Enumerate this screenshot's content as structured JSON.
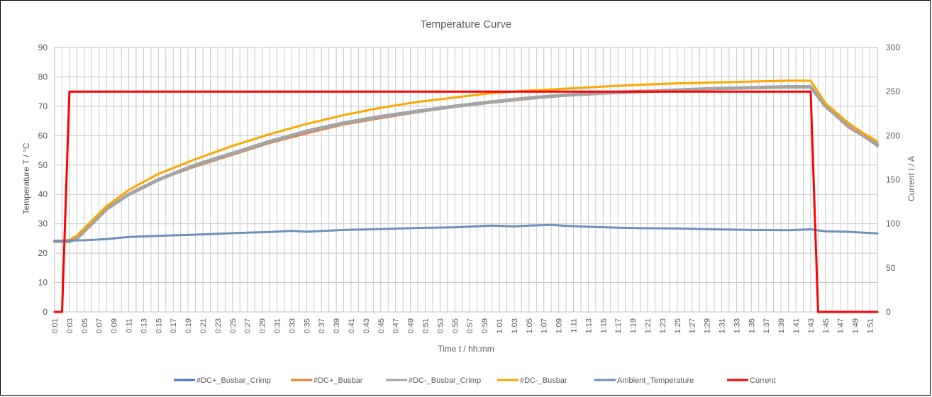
{
  "chart_data": {
    "type": "line",
    "title": "Temperature Curve",
    "xlabel": "Time t / hh:mm",
    "ylabel": "Temperature T / °C",
    "y2label": "Current I / A",
    "ylim": [
      0,
      90
    ],
    "y2lim": [
      0,
      300
    ],
    "yticks": [
      0,
      10,
      20,
      30,
      40,
      50,
      60,
      70,
      80,
      90
    ],
    "y2ticks": [
      0,
      50,
      100,
      150,
      200,
      250,
      300
    ],
    "x_minutes": [
      1,
      112
    ],
    "xtick_labels": [
      "0:01",
      "0:03",
      "0:05",
      "0:07",
      "0:09",
      "0:11",
      "0:13",
      "0:15",
      "0:17",
      "0:19",
      "0:21",
      "0:23",
      "0:25",
      "0:27",
      "0:29",
      "0:31",
      "0:33",
      "0:35",
      "0:37",
      "0:39",
      "0:41",
      "0:43",
      "0:45",
      "0:47",
      "0:49",
      "0:51",
      "0:53",
      "0:55",
      "0:57",
      "0:59",
      "1:01",
      "1:03",
      "1:05",
      "1:07",
      "1:09",
      "1:11",
      "1:13",
      "1:15",
      "1:17",
      "1:19",
      "1:21",
      "1:23",
      "1:25",
      "1:27",
      "1:29",
      "1:31",
      "1:33",
      "1:35",
      "1:37",
      "1:39",
      "1:41",
      "1:43",
      "1:45",
      "1:47",
      "1:49",
      "1:51"
    ],
    "grid": true,
    "legend_position": "bottom",
    "series": [
      {
        "name": "#DC+_Busbar_Crimp",
        "color": "#4472c4",
        "axis": "left",
        "width": 3,
        "x": [
          "0:01",
          "0:03",
          "0:04",
          "0:06",
          "0:08",
          "0:11",
          "0:15",
          "0:20",
          "0:25",
          "0:30",
          "0:35",
          "0:40",
          "0:45",
          "0:50",
          "0:55",
          "1:00",
          "1:05",
          "1:10",
          "1:15",
          "1:20",
          "1:25",
          "1:30",
          "1:35",
          "1:40",
          "1:43",
          "1:45",
          "1:48",
          "1:50",
          "1:52"
        ],
        "y": [
          24,
          24,
          25,
          30,
          35,
          40,
          45,
          50,
          54,
          58,
          61,
          64,
          66,
          68,
          70,
          71.5,
          72.8,
          74,
          74.6,
          75.2,
          75.6,
          76,
          76.4,
          76.7,
          76.7,
          70,
          63,
          60,
          56.5
        ]
      },
      {
        "name": "#DC+_Busbar",
        "color": "#ed7d31",
        "axis": "left",
        "width": 3,
        "x": [
          "0:01",
          "0:03",
          "0:04",
          "0:06",
          "0:08",
          "0:11",
          "0:15",
          "0:20",
          "0:25",
          "0:30",
          "0:35",
          "0:40",
          "0:45",
          "0:50",
          "0:55",
          "1:00",
          "1:05",
          "1:10",
          "1:15",
          "1:20",
          "1:25",
          "1:30",
          "1:35",
          "1:40",
          "1:43",
          "1:45",
          "1:48",
          "1:50",
          "1:52"
        ],
        "y": [
          24,
          24,
          25,
          30,
          35,
          40,
          45,
          49.5,
          53.5,
          57.5,
          60.8,
          63.8,
          66,
          68,
          69.8,
          71.2,
          72.5,
          73.8,
          74.5,
          75,
          75.5,
          76,
          76.3,
          76.6,
          76.6,
          70,
          63,
          60,
          56.8
        ]
      },
      {
        "name": "#DC-_Busbar_Crimp",
        "color": "#a5a5a5",
        "axis": "left",
        "width": 5,
        "x": [
          "0:01",
          "0:03",
          "0:04",
          "0:06",
          "0:08",
          "0:11",
          "0:15",
          "0:20",
          "0:25",
          "0:30",
          "0:35",
          "0:40",
          "0:45",
          "0:50",
          "0:55",
          "1:00",
          "1:05",
          "1:10",
          "1:15",
          "1:20",
          "1:25",
          "1:30",
          "1:35",
          "1:40",
          "1:43",
          "1:45",
          "1:48",
          "1:50",
          "1:52"
        ],
        "y": [
          24,
          24,
          25,
          30,
          35,
          40,
          45,
          50,
          54,
          58,
          61.5,
          64.3,
          66.5,
          68.3,
          70,
          71.5,
          72.8,
          73.8,
          74.5,
          75,
          75.5,
          76,
          76.3,
          76.6,
          76.6,
          70,
          63.5,
          60.5,
          57
        ]
      },
      {
        "name": "#DC-_Busbar",
        "color": "#ffa500",
        "axis": "left",
        "width": 3,
        "x": [
          "0:01",
          "0:03",
          "0:04",
          "0:06",
          "0:08",
          "0:11",
          "0:15",
          "0:20",
          "0:25",
          "0:30",
          "0:35",
          "0:40",
          "0:45",
          "0:50",
          "0:55",
          "1:00",
          "1:05",
          "1:10",
          "1:15",
          "1:20",
          "1:25",
          "1:30",
          "1:35",
          "1:40",
          "1:43",
          "1:45",
          "1:48",
          "1:50",
          "1:52"
        ],
        "y": [
          24,
          24.5,
          26,
          31,
          36,
          41.5,
          47,
          52,
          56.5,
          60.5,
          64,
          67,
          69.5,
          71.5,
          73,
          74.5,
          75.3,
          76,
          76.7,
          77.3,
          77.8,
          78.1,
          78.4,
          78.7,
          78.7,
          71,
          64.5,
          61,
          58
        ]
      },
      {
        "name": "Ambient_Temperature",
        "color": "#6f8fbf",
        "axis": "left",
        "width": 3,
        "x": [
          "0:01",
          "0:05",
          "0:08",
          "0:11",
          "0:15",
          "0:20",
          "0:25",
          "0:30",
          "0:33",
          "0:35",
          "0:40",
          "0:45",
          "0:50",
          "0:55",
          "1:00",
          "1:03",
          "1:05",
          "1:08",
          "1:10",
          "1:15",
          "1:20",
          "1:25",
          "1:30",
          "1:35",
          "1:40",
          "1:43",
          "1:45",
          "1:48",
          "1:50",
          "1:52"
        ],
        "y": [
          24.2,
          24.4,
          24.8,
          25.5,
          25.9,
          26.3,
          26.8,
          27.2,
          27.6,
          27.3,
          27.9,
          28.2,
          28.6,
          28.8,
          29.4,
          29.1,
          29.4,
          29.6,
          29.3,
          28.8,
          28.5,
          28.4,
          28.1,
          27.9,
          27.8,
          28.1,
          27.4,
          27.3,
          27,
          26.7
        ]
      },
      {
        "name": "Current",
        "color": "#ff0000",
        "axis": "right",
        "width": 3,
        "x": [
          "0:01",
          "0:02",
          "0:03",
          "1:43",
          "1:44",
          "1:52"
        ],
        "y": [
          0,
          0,
          250,
          250,
          0,
          0
        ]
      }
    ]
  }
}
